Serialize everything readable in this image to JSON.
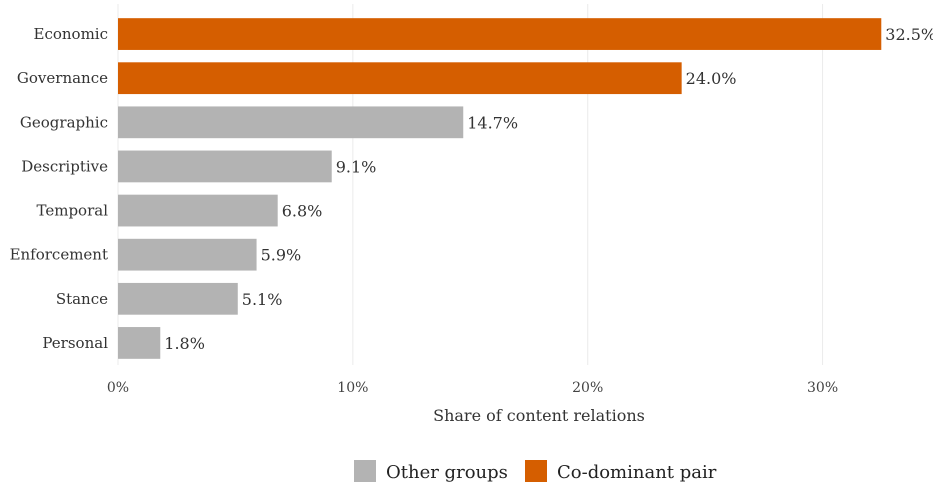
{
  "chart_data": {
    "type": "bar",
    "orientation": "horizontal",
    "categories": [
      "Economic",
      "Governance",
      "Geographic",
      "Descriptive",
      "Temporal",
      "Enforcement",
      "Stance",
      "Personal"
    ],
    "values": [
      32.5,
      24.0,
      14.7,
      9.1,
      6.8,
      5.9,
      5.1,
      1.8
    ],
    "value_labels": [
      "32.5%",
      "24.0%",
      "14.7%",
      "9.1%",
      "6.8%",
      "5.9%",
      "5.1%",
      "1.8%"
    ],
    "groups": [
      "Co-dominant pair",
      "Co-dominant pair",
      "Other groups",
      "Other groups",
      "Other groups",
      "Other groups",
      "Other groups",
      "Other groups"
    ],
    "xlabel": "Share of content relations",
    "ylabel": "",
    "title": "",
    "xlim": [
      0,
      35
    ],
    "xticks": [
      0,
      10,
      20,
      30
    ],
    "xtick_labels": [
      "0%",
      "10%",
      "20%",
      "30%"
    ],
    "grid": true,
    "legend": {
      "placement": "bottom",
      "entries": [
        {
          "label": "Other groups",
          "color": "#b3b3b3"
        },
        {
          "label": "Co-dominant pair",
          "color": "#d55e00"
        }
      ]
    },
    "colors": {
      "Other groups": "#b3b3b3",
      "Co-dominant pair": "#d55e00"
    }
  }
}
